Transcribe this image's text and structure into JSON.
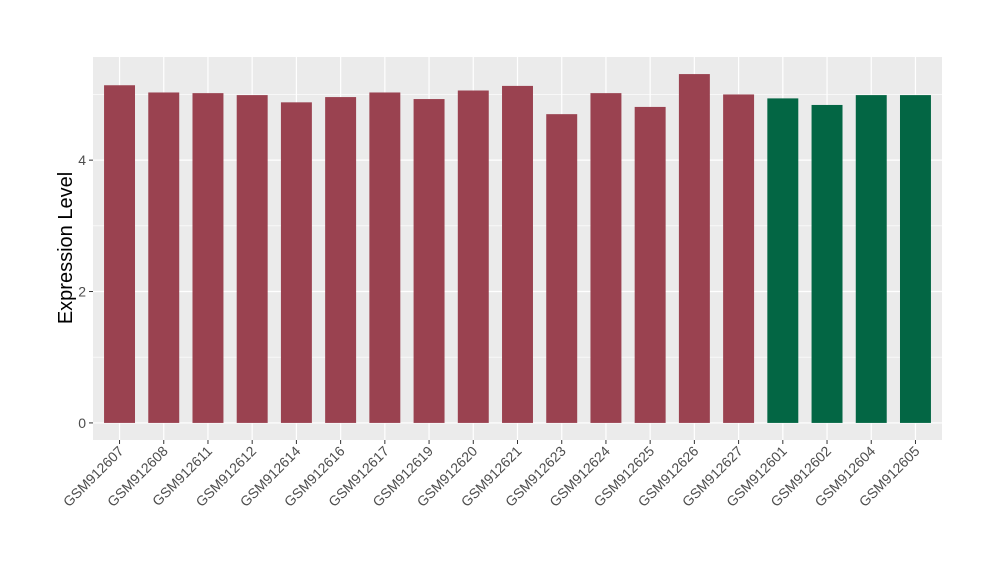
{
  "chart_data": {
    "type": "bar",
    "title": "",
    "xlabel": "",
    "ylabel": "Expression Level",
    "ylim": [
      -0.26,
      5.57
    ],
    "yticks": [
      0,
      2,
      4
    ],
    "grid": true,
    "categories": [
      "GSM912607",
      "GSM912608",
      "GSM912611",
      "GSM912612",
      "GSM912614",
      "GSM912616",
      "GSM912617",
      "GSM912619",
      "GSM912620",
      "GSM912621",
      "GSM912623",
      "GSM912624",
      "GSM912625",
      "GSM912626",
      "GSM912627",
      "GSM912601",
      "GSM912602",
      "GSM912604",
      "GSM912605"
    ],
    "values": [
      5.14,
      5.03,
      5.02,
      4.99,
      4.88,
      4.96,
      5.03,
      4.93,
      5.06,
      5.13,
      4.7,
      5.02,
      4.81,
      5.31,
      5.0,
      4.94,
      4.84,
      4.99,
      4.99
    ],
    "groups": [
      "a",
      "a",
      "a",
      "a",
      "a",
      "a",
      "a",
      "a",
      "a",
      "a",
      "a",
      "a",
      "a",
      "a",
      "a",
      "b",
      "b",
      "b",
      "b"
    ],
    "colors": {
      "a": "#9a4250",
      "b": "#036644"
    }
  }
}
